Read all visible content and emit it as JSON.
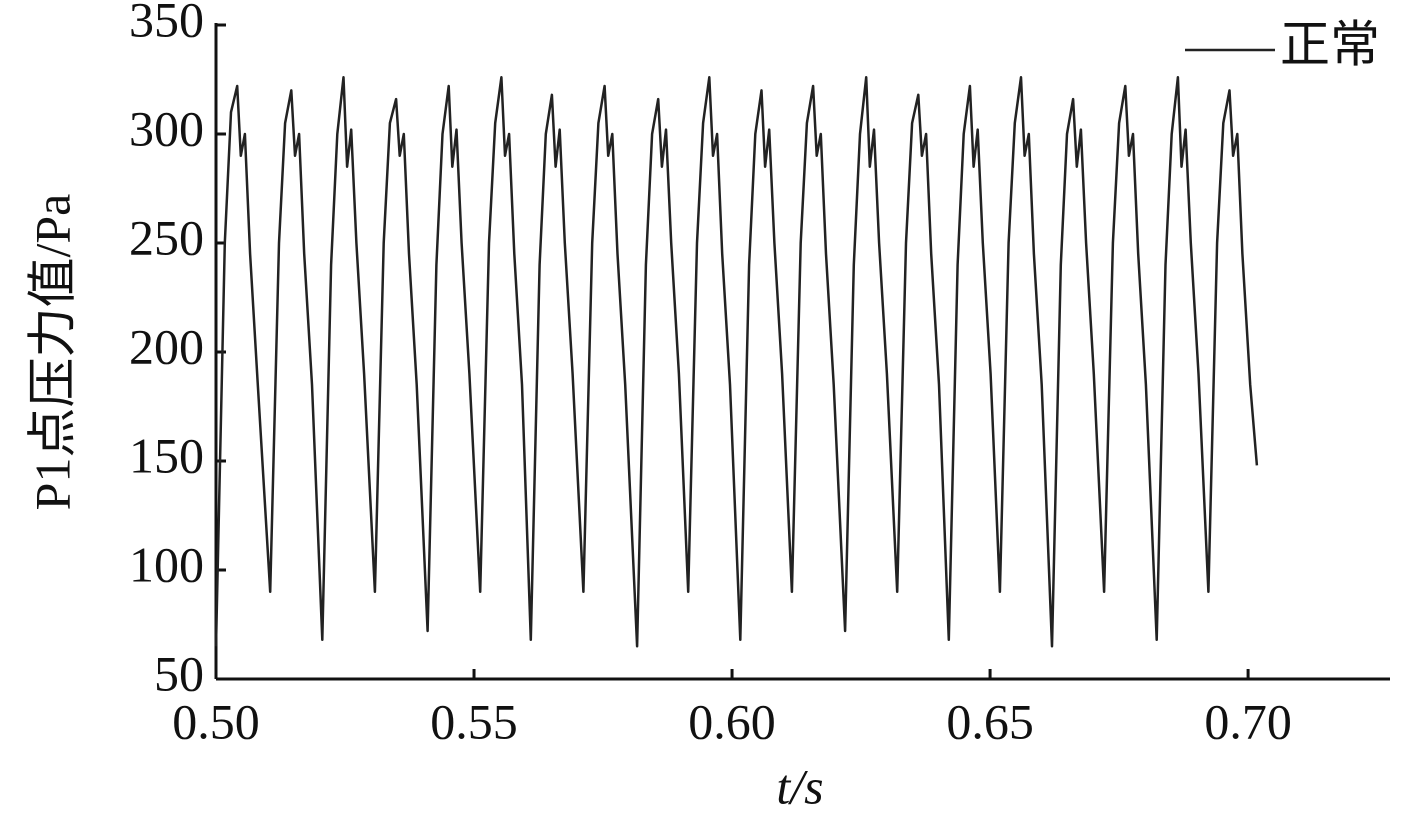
{
  "chart_data": {
    "type": "line",
    "xlabel": "t/s",
    "ylabel": "P1点压力值/Pa",
    "xlim": [
      0.5,
      0.7275
    ],
    "ylim": [
      50,
      350
    ],
    "xticks": [
      {
        "value": 0.5,
        "label": "0.50"
      },
      0.55,
      {
        "value": 0.6,
        "label": "0.60"
      },
      0.65,
      {
        "value": 0.7,
        "label": "0.70"
      }
    ],
    "yticks": [
      50,
      100,
      150,
      200,
      250,
      300,
      350
    ],
    "legend": "top-right",
    "x": [
      0.5,
      0.5017,
      0.5029,
      0.5041,
      0.5048,
      0.5056,
      0.5066,
      0.5081,
      0.5105,
      0.5122,
      0.5134,
      0.5146,
      0.5153,
      0.5161,
      0.5171,
      0.5186,
      0.5206,
      0.5223,
      0.5235,
      0.5247,
      0.5254,
      0.5262,
      0.5272,
      0.5287,
      0.5308,
      0.5325,
      0.5337,
      0.5349,
      0.5356,
      0.5364,
      0.5374,
      0.5389,
      0.541,
      0.5427,
      0.5439,
      0.5451,
      0.5458,
      0.5466,
      0.5476,
      0.5491,
      0.5512,
      0.5529,
      0.5541,
      0.5553,
      0.556,
      0.5568,
      0.5578,
      0.5593,
      0.561,
      0.5627,
      0.5639,
      0.5651,
      0.5658,
      0.5666,
      0.5676,
      0.5691,
      0.5712,
      0.5729,
      0.5741,
      0.5753,
      0.576,
      0.5768,
      0.5778,
      0.5793,
      0.5816,
      0.5833,
      0.5845,
      0.5857,
      0.5864,
      0.5872,
      0.5882,
      0.5897,
      0.5915,
      0.5932,
      0.5944,
      0.5956,
      0.5963,
      0.5971,
      0.5981,
      0.5996,
      0.6016,
      0.6033,
      0.6045,
      0.6057,
      0.6064,
      0.6072,
      0.6082,
      0.6097,
      0.6116,
      0.6133,
      0.6145,
      0.6157,
      0.6164,
      0.6172,
      0.6182,
      0.6197,
      0.6219,
      0.6236,
      0.6248,
      0.626,
      0.6267,
      0.6275,
      0.6285,
      0.63,
      0.632,
      0.6337,
      0.6349,
      0.6361,
      0.6368,
      0.6376,
      0.6386,
      0.6401,
      0.642,
      0.6437,
      0.6449,
      0.6461,
      0.6468,
      0.6476,
      0.6486,
      0.6501,
      0.6519,
      0.6536,
      0.6548,
      0.656,
      0.6567,
      0.6575,
      0.6585,
      0.66,
      0.662,
      0.6637,
      0.6649,
      0.6661,
      0.6668,
      0.6676,
      0.6686,
      0.6701,
      0.6721,
      0.6738,
      0.675,
      0.6762,
      0.6769,
      0.6777,
      0.6787,
      0.6802,
      0.6823,
      0.684,
      0.6852,
      0.6864,
      0.6871,
      0.6879,
      0.6889,
      0.6904,
      0.6923,
      0.694,
      0.6952,
      0.6964,
      0.6971,
      0.6979,
      0.6989,
      0.7004,
      0.7017
    ],
    "series": [
      {
        "name": "正常",
        "color": "#222222",
        "values": [
          65,
          250,
          310,
          322,
          290,
          300,
          245,
          185,
          90,
          250,
          305,
          320,
          290,
          300,
          245,
          185,
          68,
          240,
          300,
          326,
          285,
          302,
          250,
          190,
          90,
          250,
          305,
          316,
          290,
          300,
          245,
          185,
          72,
          240,
          300,
          322,
          285,
          302,
          250,
          190,
          90,
          250,
          305,
          326,
          290,
          300,
          245,
          185,
          68,
          240,
          300,
          318,
          285,
          302,
          250,
          190,
          90,
          250,
          305,
          322,
          290,
          300,
          245,
          185,
          65,
          240,
          300,
          316,
          285,
          302,
          250,
          190,
          90,
          250,
          305,
          326,
          290,
          300,
          245,
          185,
          68,
          240,
          300,
          320,
          285,
          302,
          250,
          190,
          90,
          250,
          305,
          322,
          290,
          300,
          245,
          185,
          72,
          240,
          300,
          326,
          285,
          302,
          250,
          190,
          90,
          250,
          305,
          318,
          290,
          300,
          245,
          185,
          68,
          240,
          300,
          322,
          285,
          302,
          250,
          190,
          90,
          250,
          305,
          326,
          290,
          300,
          245,
          185,
          65,
          240,
          300,
          316,
          285,
          302,
          250,
          190,
          90,
          250,
          305,
          322,
          290,
          300,
          245,
          185,
          68,
          240,
          300,
          326,
          285,
          302,
          250,
          190,
          90,
          250,
          305,
          320,
          290,
          300,
          245,
          185,
          148
        ]
      }
    ]
  }
}
